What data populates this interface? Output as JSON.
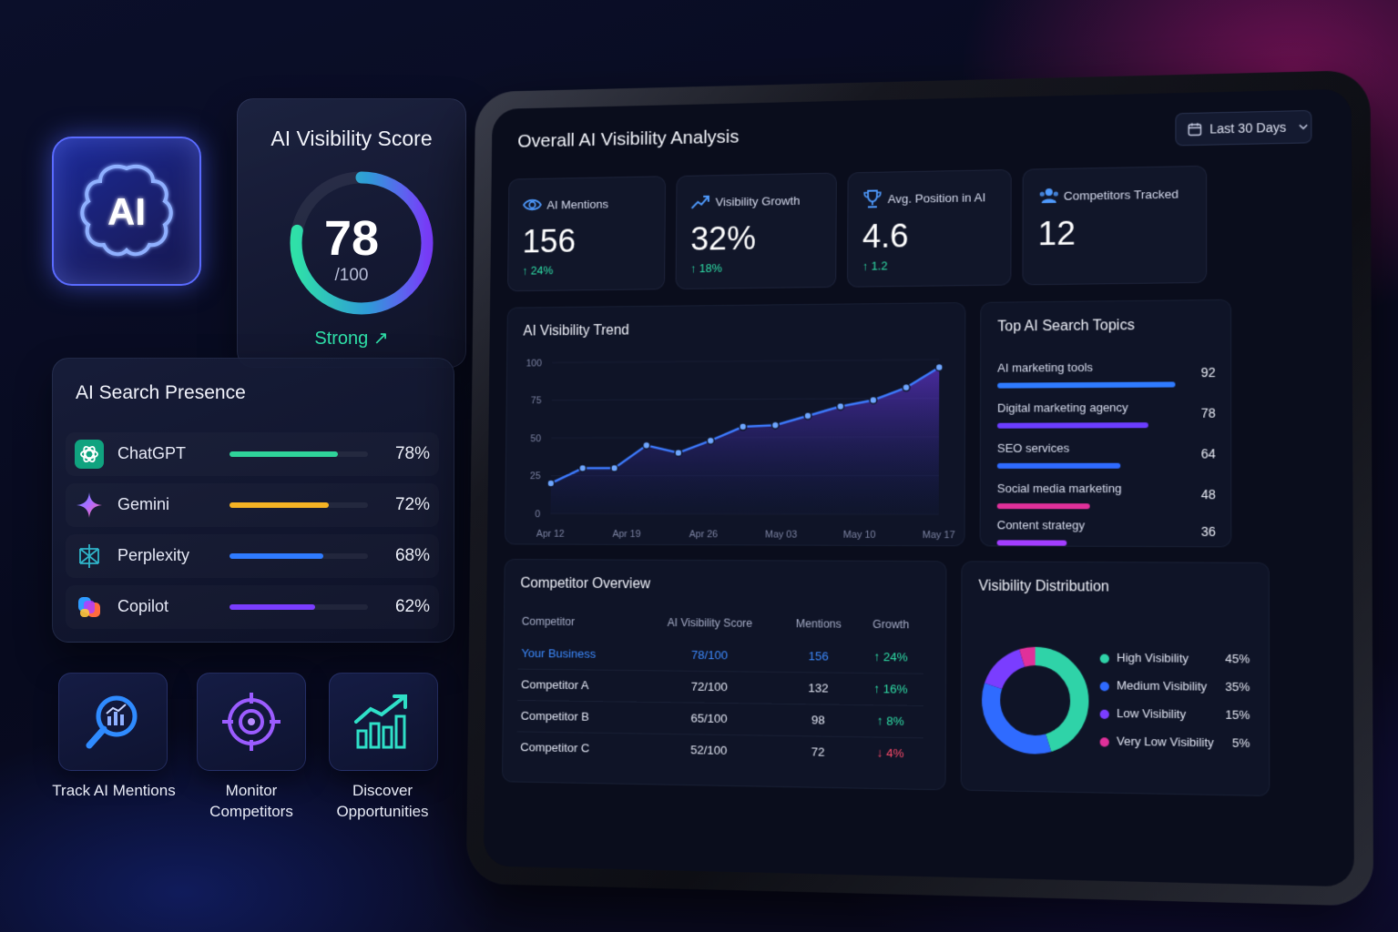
{
  "ai_tile": {
    "label": "AI"
  },
  "score_card": {
    "title": "AI Visibility Score",
    "value": "78",
    "max": "/100",
    "status": "Strong ↗",
    "score": 78,
    "ring_colors": [
      "#2fe0a8",
      "#3d7bff",
      "#7b3dff"
    ]
  },
  "presence": {
    "title": "AI Search Presence",
    "items": [
      {
        "name": "ChatGPT",
        "pct": "78%",
        "value": 78,
        "color": "#2fd39a",
        "icon": "chatgpt-icon"
      },
      {
        "name": "Gemini",
        "pct": "72%",
        "value": 72,
        "color": "#f5b324",
        "icon": "gemini-icon"
      },
      {
        "name": "Perplexity",
        "pct": "68%",
        "value": 68,
        "color": "#2f7bff",
        "icon": "perplexity-icon"
      },
      {
        "name": "Copilot",
        "pct": "62%",
        "value": 62,
        "color": "#7a3dff",
        "icon": "copilot-icon"
      }
    ]
  },
  "features": [
    {
      "label_line1": "Track AI Mentions",
      "label_line2": "",
      "icon": "search-chart-icon"
    },
    {
      "label_line1": "Monitor",
      "label_line2": "Competitors",
      "icon": "target-icon"
    },
    {
      "label_line1": "Discover",
      "label_line2": "Opportunities",
      "icon": "growth-chart-icon"
    }
  ],
  "dashboard": {
    "title": "Overall AI Visibility Analysis",
    "date_range": "Last 30 Days",
    "kpis": [
      {
        "label": "AI Mentions",
        "value": "156",
        "delta": "↑ 24%",
        "icon": "eye-icon"
      },
      {
        "label": "Visibility Growth",
        "value": "32%",
        "delta": "↑ 18%",
        "icon": "trend-up-icon"
      },
      {
        "label": "Avg. Position in AI",
        "value": "4.6",
        "delta": "↑ 1.2",
        "icon": "trophy-icon"
      },
      {
        "label": "Competitors Tracked",
        "value": "12",
        "delta": "",
        "icon": "users-icon"
      }
    ]
  },
  "chart_data": {
    "type": "area",
    "title": "AI Visibility Trend",
    "xlabel": "",
    "ylabel": "",
    "ylim": [
      0,
      100
    ],
    "yticks": [
      "100",
      "75",
      "50",
      "25",
      "0"
    ],
    "xticks": [
      "Apr 12",
      "Apr 19",
      "Apr 26",
      "May 03",
      "May 10",
      "May 17"
    ],
    "x": [
      "Apr 12",
      "Apr 15",
      "Apr 19",
      "Apr 22",
      "Apr 26",
      "Apr 29",
      "May 02",
      "May 03",
      "May 06",
      "May 10",
      "May 13",
      "May 17",
      "May 20"
    ],
    "values": [
      20,
      30,
      30,
      45,
      40,
      48,
      57,
      58,
      64,
      70,
      74,
      82,
      95
    ],
    "color": "#3d7bff"
  },
  "topics": {
    "title": "Top AI Search Topics",
    "items": [
      {
        "name": "AI marketing tools",
        "value": 92,
        "label": "92",
        "color": "#2f7bff"
      },
      {
        "name": "Digital marketing agency",
        "value": 78,
        "label": "78",
        "color": "#6b3dff"
      },
      {
        "name": "SEO services",
        "value": 64,
        "label": "64",
        "color": "#2f6bff"
      },
      {
        "name": "Social media marketing",
        "value": 48,
        "label": "48",
        "color": "#e0309a"
      },
      {
        "name": "Content strategy",
        "value": 36,
        "label": "36",
        "color": "#a33dff"
      }
    ]
  },
  "competitors": {
    "title": "Competitor Overview",
    "headers": [
      "Competitor",
      "AI Visibility Score",
      "Mentions",
      "Growth"
    ],
    "rows": [
      {
        "name": "Your Business",
        "score": "78/100",
        "mentions": "156",
        "growth": "↑ 24%",
        "trend": "up"
      },
      {
        "name": "Competitor A",
        "score": "72/100",
        "mentions": "132",
        "growth": "↑ 16%",
        "trend": "up"
      },
      {
        "name": "Competitor B",
        "score": "65/100",
        "mentions": "98",
        "growth": "↑ 8%",
        "trend": "up"
      },
      {
        "name": "Competitor C",
        "score": "52/100",
        "mentions": "72",
        "growth": "↓ 4%",
        "trend": "down"
      }
    ]
  },
  "distribution": {
    "title": "Visibility Distribution",
    "items": [
      {
        "name": "High Visibility",
        "pct": "45%",
        "value": 45,
        "color": "#2fd3a8"
      },
      {
        "name": "Medium Visibility",
        "pct": "35%",
        "value": 35,
        "color": "#2f6bff"
      },
      {
        "name": "Low Visibility",
        "pct": "15%",
        "value": 15,
        "color": "#7a3dff"
      },
      {
        "name": "Very Low Visibility",
        "pct": "5%",
        "value": 5,
        "color": "#e0309a"
      }
    ]
  }
}
